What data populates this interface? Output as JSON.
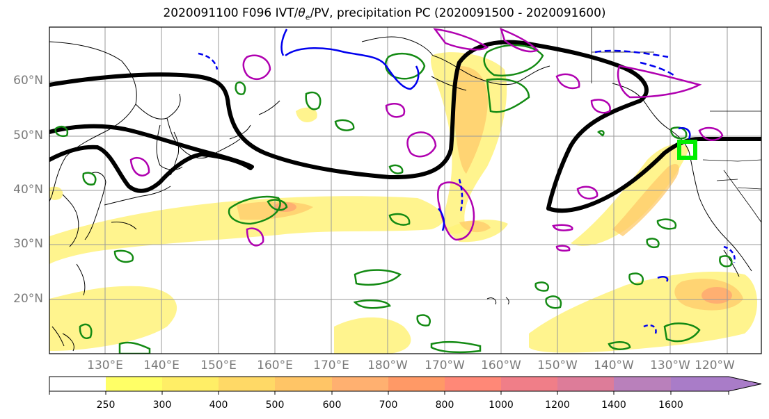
{
  "title": {
    "prefix": "2020091100 F096 IVT/",
    "theta": "θ",
    "theta_sub": "e",
    "suffix": "/PV, precipitation PC (2020091500 - 2020091600)"
  },
  "map": {
    "lat_labels": [
      "60°N",
      "50°N",
      "40°N",
      "30°N",
      "20°N"
    ],
    "lon_labels": [
      "130°E",
      "140°E",
      "150°E",
      "160°E",
      "170°E",
      "180°W",
      "170°W",
      "160°W",
      "150°W",
      "140°W",
      "130°W",
      "120°W"
    ],
    "lat_range": [
      10,
      70
    ],
    "lon_range_east": [
      120,
      247
    ],
    "marker": "green-square"
  },
  "colorbar": {
    "levels": [
      "250",
      "300",
      "400",
      "500",
      "600",
      "700",
      "800",
      "1000",
      "1200",
      "1400",
      "1600"
    ],
    "colors": [
      "#ffffff",
      "#ffff66",
      "#ffee66",
      "#ffd966",
      "#ffc566",
      "#ffb070",
      "#ff9966",
      "#ff8877",
      "#f07e88",
      "#dd7c99",
      "#b980bb",
      "#a97cc8"
    ]
  },
  "colors": {
    "ivt_fill": "#fff27a",
    "thetae_contour": "#138a13",
    "pv_contour": "#b000b0",
    "negative_contour": "#0000ee",
    "jet_contour": "#000000",
    "marker": "#00ee00",
    "grid": "#999999",
    "coast": "#000000"
  }
}
